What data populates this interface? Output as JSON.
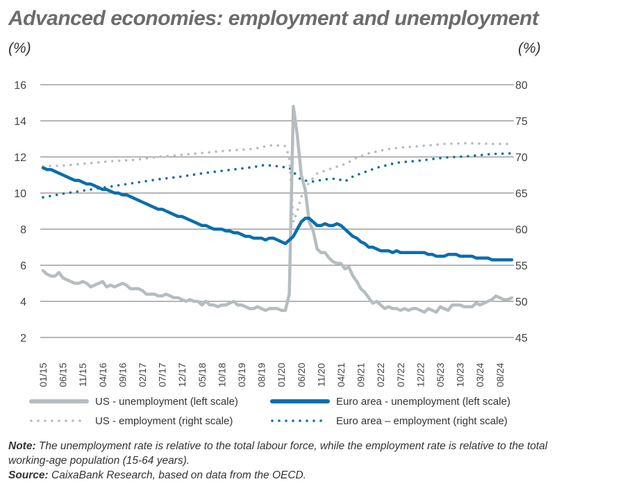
{
  "title": "Advanced economies: employment and unemployment",
  "left_unit": "(%)",
  "right_unit": "(%)",
  "note_label": "Note:",
  "note_text": "The unemployment rate is relative to the total labour force, while the employment rate is relative to the total working-age population (15-64 years).",
  "source_label": "Source:",
  "source_text": "CaixaBank Research, based on data from the OECD.",
  "chart_data": {
    "type": "line",
    "grid": true,
    "legend_position": "bottom",
    "y_left": {
      "range": [
        2,
        16
      ],
      "ticks": [
        "2",
        "4",
        "6",
        "8",
        "10",
        "12",
        "14",
        "16"
      ]
    },
    "y_right": {
      "range": [
        45,
        80
      ],
      "ticks": [
        "45",
        "50",
        "55",
        "60",
        "65",
        "70",
        "75",
        "80"
      ]
    },
    "x_start": "01/15",
    "x_ticks": [
      "01/15",
      "06/15",
      "11/15",
      "04/16",
      "09/16",
      "02/17",
      "07/17",
      "12/17",
      "05/18",
      "10/18",
      "03/19",
      "08/19",
      "01/20",
      "06/20",
      "11/20",
      "04/21",
      "09/21",
      "02/22",
      "07/22",
      "12/22",
      "05/23",
      "10/23",
      "03/24",
      "08/24"
    ],
    "colors": {
      "us": "#b5bdc0",
      "euro": "#0a6eac"
    },
    "series": [
      {
        "name": "US - unemployment (left scale)",
        "axis": "left",
        "style": "solid",
        "color": "#b5bdc0",
        "frequency": "monthly",
        "values": [
          5.7,
          5.5,
          5.4,
          5.4,
          5.6,
          5.3,
          5.2,
          5.1,
          5.0,
          5.0,
          5.1,
          5.0,
          4.8,
          4.9,
          5.0,
          5.1,
          4.8,
          4.9,
          4.8,
          4.9,
          5.0,
          4.9,
          4.7,
          4.7,
          4.7,
          4.6,
          4.4,
          4.4,
          4.4,
          4.3,
          4.3,
          4.4,
          4.3,
          4.2,
          4.2,
          4.1,
          4.0,
          4.1,
          4.0,
          4.0,
          3.8,
          4.0,
          3.8,
          3.8,
          3.7,
          3.8,
          3.8,
          3.9,
          4.0,
          3.8,
          3.8,
          3.7,
          3.6,
          3.6,
          3.7,
          3.6,
          3.5,
          3.6,
          3.6,
          3.6,
          3.5,
          3.5,
          4.4,
          14.8,
          13.2,
          11.0,
          10.2,
          8.4,
          7.9,
          6.9,
          6.7,
          6.7,
          6.4,
          6.2,
          6.1,
          6.1,
          5.8,
          5.9,
          5.4,
          5.1,
          4.7,
          4.5,
          4.2,
          3.9,
          4.0,
          3.8,
          3.6,
          3.7,
          3.6,
          3.6,
          3.5,
          3.6,
          3.5,
          3.6,
          3.6,
          3.5,
          3.4,
          3.6,
          3.5,
          3.4,
          3.7,
          3.6,
          3.5,
          3.8,
          3.8,
          3.8,
          3.7,
          3.7,
          3.7,
          3.9,
          3.8,
          3.9,
          4.0,
          4.1,
          4.3,
          4.2,
          4.1,
          4.1,
          4.2
        ]
      },
      {
        "name": "Euro area - unemployment (left scale)",
        "axis": "left",
        "style": "solid",
        "color": "#0a6eac",
        "frequency": "monthly",
        "values": [
          11.4,
          11.3,
          11.3,
          11.2,
          11.1,
          11.0,
          10.9,
          10.8,
          10.7,
          10.7,
          10.6,
          10.5,
          10.5,
          10.4,
          10.3,
          10.2,
          10.2,
          10.1,
          10.0,
          10.0,
          9.9,
          9.9,
          9.8,
          9.7,
          9.6,
          9.5,
          9.4,
          9.3,
          9.2,
          9.1,
          9.1,
          9.0,
          8.9,
          8.8,
          8.7,
          8.7,
          8.6,
          8.5,
          8.4,
          8.3,
          8.2,
          8.2,
          8.1,
          8.0,
          8.0,
          8.0,
          7.9,
          7.9,
          7.8,
          7.8,
          7.7,
          7.6,
          7.6,
          7.5,
          7.5,
          7.5,
          7.4,
          7.5,
          7.5,
          7.4,
          7.3,
          7.2,
          7.4,
          7.6,
          8.0,
          8.4,
          8.6,
          8.6,
          8.4,
          8.2,
          8.2,
          8.3,
          8.2,
          8.2,
          8.3,
          8.2,
          8.0,
          7.8,
          7.6,
          7.5,
          7.3,
          7.2,
          7.0,
          7.0,
          6.9,
          6.8,
          6.8,
          6.8,
          6.7,
          6.8,
          6.7,
          6.7,
          6.7,
          6.7,
          6.7,
          6.7,
          6.7,
          6.6,
          6.6,
          6.5,
          6.5,
          6.5,
          6.6,
          6.6,
          6.6,
          6.5,
          6.5,
          6.5,
          6.5,
          6.4,
          6.4,
          6.4,
          6.4,
          6.3,
          6.3,
          6.3,
          6.3,
          6.3,
          6.3
        ]
      },
      {
        "name": "US - employment (right scale)",
        "axis": "right",
        "style": "dotted",
        "color": "#b5bdc0",
        "points": [
          [
            "01/15",
            68.7
          ],
          [
            "06/15",
            68.8
          ],
          [
            "12/15",
            69.1
          ],
          [
            "06/16",
            69.4
          ],
          [
            "12/16",
            69.6
          ],
          [
            "06/17",
            70.0
          ],
          [
            "12/17",
            70.3
          ],
          [
            "06/18",
            70.6
          ],
          [
            "12/18",
            70.9
          ],
          [
            "06/19",
            71.1
          ],
          [
            "10/19",
            71.6
          ],
          [
            "01/20",
            71.6
          ],
          [
            "02/20",
            71.5
          ],
          [
            "03/20",
            70.0
          ],
          [
            "04/20",
            61.0
          ],
          [
            "05/20",
            62.5
          ],
          [
            "06/20",
            64.5
          ],
          [
            "08/20",
            66.5
          ],
          [
            "10/20",
            67.7
          ],
          [
            "01/21",
            68.3
          ],
          [
            "05/21",
            69.0
          ],
          [
            "08/21",
            69.9
          ],
          [
            "11/21",
            70.5
          ],
          [
            "03/22",
            71.0
          ],
          [
            "07/22",
            71.3
          ],
          [
            "12/22",
            71.5
          ],
          [
            "06/23",
            71.8
          ],
          [
            "12/23",
            71.9
          ],
          [
            "06/24",
            71.8
          ],
          [
            "11/24",
            71.8
          ]
        ]
      },
      {
        "name": "Euro area – employment (right scale)",
        "axis": "right",
        "style": "dotted",
        "color": "#0a6eac",
        "points": [
          [
            "01/15",
            64.4
          ],
          [
            "06/15",
            64.9
          ],
          [
            "12/15",
            65.4
          ],
          [
            "06/16",
            65.9
          ],
          [
            "12/16",
            66.4
          ],
          [
            "06/17",
            66.9
          ],
          [
            "12/17",
            67.3
          ],
          [
            "06/18",
            67.8
          ],
          [
            "12/18",
            68.2
          ],
          [
            "06/19",
            68.6
          ],
          [
            "09/19",
            68.9
          ],
          [
            "12/19",
            68.7
          ],
          [
            "03/20",
            68.5
          ],
          [
            "06/20",
            66.8
          ],
          [
            "09/20",
            66.6
          ],
          [
            "12/20",
            66.9
          ],
          [
            "03/21",
            67.0
          ],
          [
            "05/21",
            66.6
          ],
          [
            "07/21",
            67.3
          ],
          [
            "10/21",
            67.9
          ],
          [
            "01/22",
            68.5
          ],
          [
            "06/22",
            69.2
          ],
          [
            "12/22",
            69.5
          ],
          [
            "06/23",
            69.9
          ],
          [
            "12/23",
            70.1
          ],
          [
            "06/24",
            70.4
          ],
          [
            "11/24",
            70.5
          ]
        ]
      }
    ]
  }
}
